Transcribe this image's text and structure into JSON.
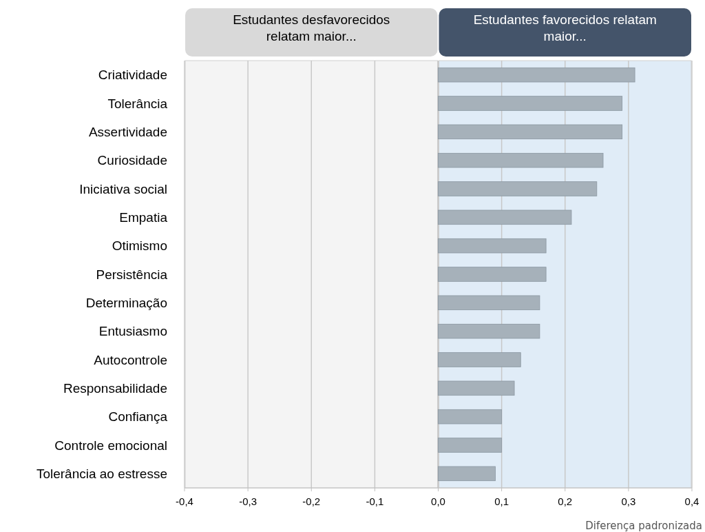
{
  "chart_data": {
    "type": "bar",
    "orientation": "horizontal",
    "xlabel": "Diferença padronizada",
    "categories": [
      "Criatividade",
      "Tolerância",
      "Assertividade",
      "Curiosidade",
      "Iniciativa social",
      "Empatia",
      "Otimismo",
      "Persistência",
      "Determinação",
      "Entusiasmo",
      "Autocontrole",
      "Responsabilidade",
      "Confiança",
      "Controle emocional",
      "Tolerância ao estresse"
    ],
    "values": [
      0.31,
      0.29,
      0.29,
      0.26,
      0.25,
      0.21,
      0.17,
      0.17,
      0.16,
      0.16,
      0.13,
      0.12,
      0.1,
      0.1,
      0.09
    ],
    "color": "#a6b1ba",
    "xlim": [
      -0.4,
      0.4
    ],
    "xticks": [
      {
        "value": -0.4,
        "label": "-0,4"
      },
      {
        "value": -0.3,
        "label": "-0,3"
      },
      {
        "value": -0.2,
        "label": "-0,2"
      },
      {
        "value": -0.1,
        "label": "-0,1"
      },
      {
        "value": 0,
        "label": "0,0"
      },
      {
        "value": 0.1,
        "label": "0,1"
      },
      {
        "value": 0.2,
        "label": "0,2"
      },
      {
        "value": 0.3,
        "label": "0,3"
      },
      {
        "value": 0.4,
        "label": "0,4"
      }
    ],
    "grid": "x",
    "bands": [
      {
        "axis": "x",
        "from": -0.4,
        "to": 0,
        "label": "Estudantes desfavorecidos relatam maior...",
        "color": "#f4f4f4"
      },
      {
        "axis": "x",
        "from": 0,
        "to": 0.4,
        "label": "Estudantes favorecidos relatam maior...",
        "color": "#e0ecf7"
      }
    ]
  }
}
